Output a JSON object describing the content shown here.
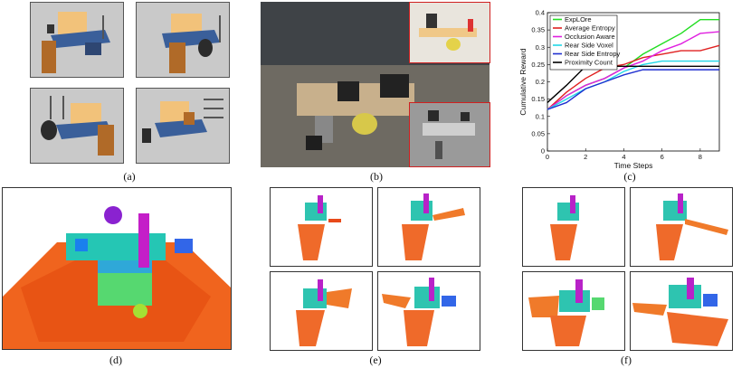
{
  "captions": {
    "a": "(a)",
    "b": "(b)",
    "c": "(c)",
    "d": "(d)",
    "e": "(e)",
    "f": "(f)"
  },
  "chart_data": {
    "type": "line",
    "xlabel": "Time Steps",
    "ylabel": "Cumulative Reward",
    "xlim": [
      0,
      9
    ],
    "ylim": [
      0,
      0.4
    ],
    "xticks": [
      0,
      2,
      4,
      6,
      8
    ],
    "yticks": [
      0,
      0.05,
      0.1,
      0.15,
      0.2,
      0.25,
      0.3,
      0.35,
      0.4
    ],
    "ytick_labels": [
      "0",
      "0.05",
      "0.1",
      "0.15",
      "0.2",
      "0.25",
      "0.3",
      "0.35",
      "0.4"
    ],
    "legend_position": "top-left",
    "x": [
      0,
      1,
      2,
      3,
      4,
      5,
      6,
      7,
      8,
      9
    ],
    "series": [
      {
        "name": "ExpLOre",
        "color": "#22dd22",
        "values": [
          0.12,
          0.16,
          0.19,
          0.21,
          0.24,
          0.28,
          0.31,
          0.34,
          0.38,
          0.38
        ]
      },
      {
        "name": "Average Entropy",
        "color": "#e02020",
        "values": [
          0.12,
          0.17,
          0.21,
          0.24,
          0.25,
          0.27,
          0.28,
          0.29,
          0.29,
          0.305
        ]
      },
      {
        "name": "Occlusion Aware",
        "color": "#e020e0",
        "values": [
          0.12,
          0.16,
          0.19,
          0.21,
          0.24,
          0.26,
          0.29,
          0.31,
          0.34,
          0.345
        ]
      },
      {
        "name": "Rear Side Voxel",
        "color": "#20d8e8",
        "values": [
          0.12,
          0.15,
          0.18,
          0.2,
          0.23,
          0.25,
          0.26,
          0.26,
          0.26,
          0.26
        ]
      },
      {
        "name": "Rear Side Entropy",
        "color": "#2030d0",
        "values": [
          0.12,
          0.14,
          0.18,
          0.2,
          0.22,
          0.235,
          0.235,
          0.235,
          0.235,
          0.235
        ]
      },
      {
        "name": "Proximity Count",
        "color": "#000000",
        "values": [
          0.14,
          0.19,
          0.245,
          0.245,
          0.245,
          0.245,
          0.245,
          0.245,
          0.245,
          0.245
        ]
      }
    ]
  }
}
